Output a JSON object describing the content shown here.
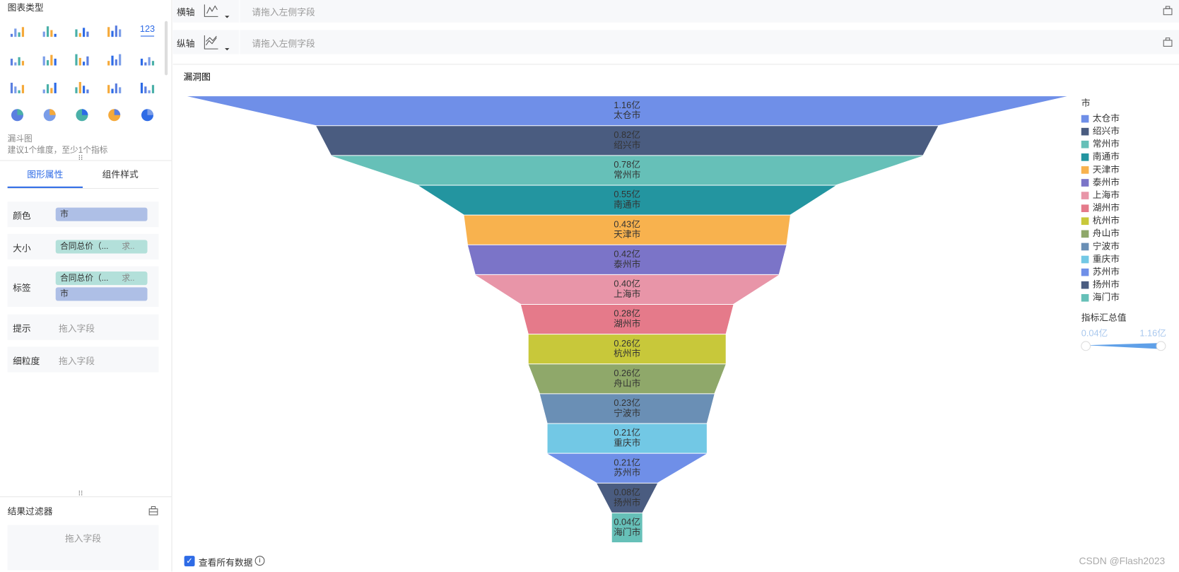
{
  "sidebar": {
    "title": "图表类型",
    "icon_text": "123",
    "chart_name": "漏斗图",
    "hint": "建议1个维度，至少1个指标",
    "tabs": [
      "图形属性",
      "组件样式"
    ],
    "properties": [
      {
        "label": "颜色",
        "fields": [
          {
            "name": "市"
          }
        ]
      },
      {
        "label": "大小",
        "fields": [
          {
            "name": "合同总价（...",
            "agg": "求.."
          }
        ]
      },
      {
        "label": "标签",
        "fields": [
          {
            "name": "合同总价（...",
            "agg": "求.."
          },
          {
            "name": "市"
          }
        ]
      },
      {
        "label": "提示",
        "placeholder": "拖入字段"
      },
      {
        "label": "细粒度",
        "placeholder": "拖入字段"
      }
    ],
    "filter": {
      "title": "结果过滤器",
      "placeholder": "拖入字段"
    }
  },
  "shelves": [
    {
      "label": "横轴",
      "placeholder": "请拖入左侧字段"
    },
    {
      "label": "纵轴",
      "placeholder": "请拖入左侧字段"
    }
  ],
  "chart_data": {
    "type": "funnel",
    "title": "漏洞图",
    "categories": [
      "太仓市",
      "绍兴市",
      "常州市",
      "南通市",
      "天津市",
      "泰州市",
      "上海市",
      "湖州市",
      "杭州市",
      "舟山市",
      "宁波市",
      "重庆市",
      "苏州市",
      "扬州市",
      "海门市"
    ],
    "values": [
      1.16,
      0.82,
      0.78,
      0.55,
      0.43,
      0.42,
      0.4,
      0.28,
      0.26,
      0.26,
      0.23,
      0.21,
      0.21,
      0.08,
      0.04
    ],
    "value_labels": [
      "1.16亿",
      "0.82亿",
      "0.78亿",
      "0.55亿",
      "0.43亿",
      "0.42亿",
      "0.40亿",
      "0.28亿",
      "0.26亿",
      "0.26亿",
      "0.23亿",
      "0.21亿",
      "0.21亿",
      "0.08亿",
      "0.04亿"
    ],
    "colors": [
      "#6f8fe8",
      "#4a5c80",
      "#66c0b8",
      "#2395a0",
      "#f8b24e",
      "#7b74c8",
      "#e895a8",
      "#e57a8a",
      "#c8c83a",
      "#8fa86a",
      "#6a8fb5",
      "#72c8e5",
      "#6f8fe8",
      "#4a5c80",
      "#66c0b8"
    ],
    "legend_title": "市",
    "legend_position": "right",
    "size_legend": {
      "title": "指标汇总值",
      "min_label": "0.04亿",
      "max_label": "1.16亿"
    }
  },
  "footer": {
    "checkbox": "查看所有数据",
    "watermark": "CSDN @Flash2023"
  }
}
